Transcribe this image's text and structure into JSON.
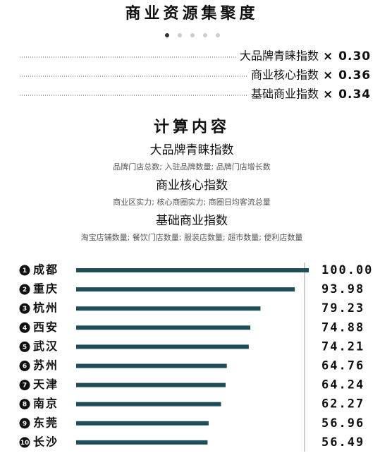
{
  "header": {
    "title": "商业资源集聚度"
  },
  "weights": [
    {
      "label": "大品牌青睐指数",
      "value": "× 0.30"
    },
    {
      "label": "商业核心指数",
      "value": "× 0.36"
    },
    {
      "label": "基础商业指数",
      "value": "× 0.34"
    }
  ],
  "calculation": {
    "title": "计算内容",
    "items": [
      {
        "name": "大品牌青睐指数",
        "description": "品牌门店总数; 入驻品牌数量; 品牌门店增长数"
      },
      {
        "name": "商业核心指数",
        "description": "商业区实力; 核心商圈实力; 商圈日均客流总量"
      },
      {
        "name": "基础商业指数",
        "description": "淘宝店铺数量; 餐饮门店数量; 服装店数量; 超市数量; 便利店数量"
      }
    ]
  },
  "chart_data": {
    "type": "bar",
    "orientation": "horizontal",
    "color": "#1f4e5a",
    "ranks": [
      "1",
      "2",
      "3",
      "4",
      "5",
      "6",
      "7",
      "8",
      "9",
      "10"
    ],
    "categories": [
      "成都",
      "重庆",
      "杭州",
      "西安",
      "武汉",
      "苏州",
      "天津",
      "南京",
      "东莞",
      "长沙"
    ],
    "values": [
      100,
      93.98,
      79.23,
      74.88,
      74.21,
      64.76,
      64.24,
      62.27,
      56.96,
      56.49
    ],
    "value_labels": [
      "100.00",
      "93.98",
      "79.23",
      "74.88",
      "74.21",
      "64.76",
      "64.24",
      "62.27",
      "56.96",
      "56.49"
    ],
    "xlim": [
      0,
      100
    ]
  }
}
